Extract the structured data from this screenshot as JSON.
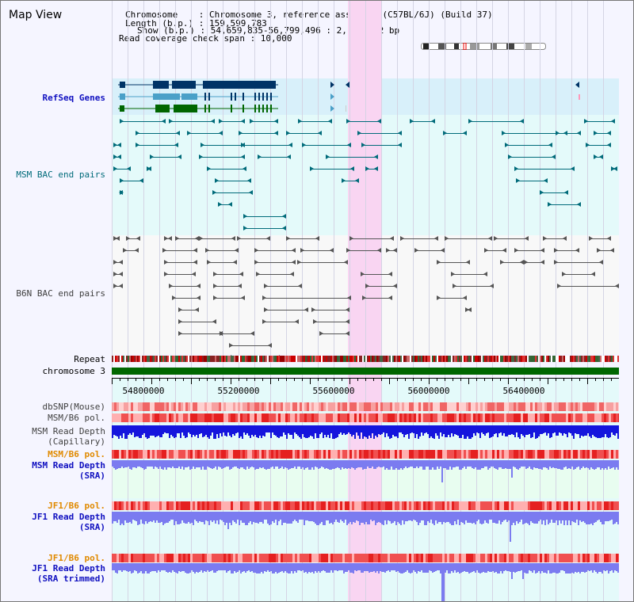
{
  "page": {
    "title": "Map View"
  },
  "info": {
    "chromosome_label": "Chromosome    : Chromosome 3, reference assembly (C57BL/6J) (Build 37)",
    "length_label": "Length (b.p.) : 159,599,783",
    "show_label": "Show (b.p.) : 54,659,835-56,799,496 : 2,139,662 bp",
    "coverage_label": "Read coverage check span : 10,000"
  },
  "tracks": {
    "refseq": "RefSeq Genes",
    "msm_bac": "MSM BAC end pairs",
    "b6n_bac": "B6N BAC end pairs",
    "repeat": "Repeat",
    "chromosome": "chromosome 3",
    "dbsnp": "dbSNP(Mouse)",
    "msm_pol": "MSM/B6 pol.",
    "msm_depth_cap_1": "MSM Read Depth",
    "msm_depth_cap_2": "(Capillary)",
    "msm_pol_2": "MSM/B6 pol.",
    "msm_depth_sra_1": "MSM Read Depth",
    "msm_depth_sra_2": "(SRA)",
    "jf1_pol": "JF1/B6 pol.",
    "jf1_depth_1": "JF1 Read Depth",
    "jf1_depth_2": "(SRA)",
    "jf1_pol_2": "JF1/B6 pol.",
    "jf1_trim_1": "JF1 Read Depth",
    "jf1_trim_2": "(SRA trimmed)"
  },
  "axis": {
    "ticks": [
      "54800000",
      "55200000",
      "55600000",
      "56000000",
      "56400000"
    ]
  },
  "colors": {
    "highlight": "#f9d5f2",
    "refseq_bg": "#d8f0fa",
    "msm_bg": "#e4fafa",
    "depth_bg": "#e8fdf0",
    "chromosome_bar": "#006600",
    "gene_dark": "#003366",
    "gene_light": "#4aa0c8",
    "gene_green": "#006600",
    "bac_teal": "#006b7a",
    "bac_gray": "#555555",
    "depth_blue": "#1515dd",
    "depth_light": "#7b7bf0"
  }
}
